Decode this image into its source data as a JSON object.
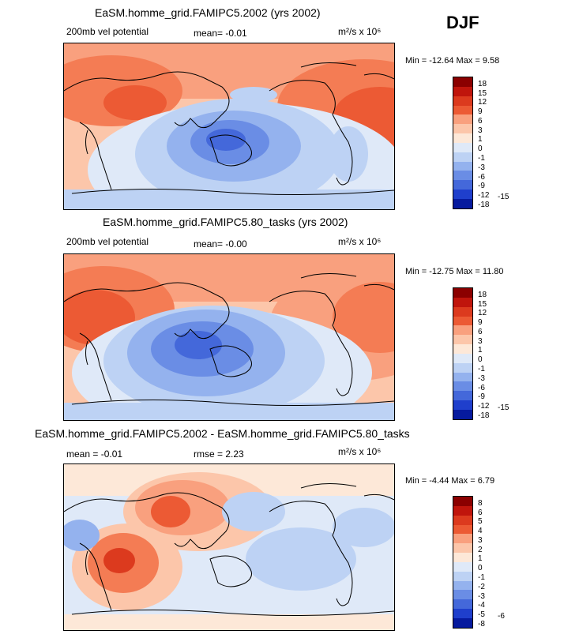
{
  "season": "DJF",
  "panels": [
    {
      "title": "EaSM.homme_grid.FAMIPC5.2002 (yrs 2002)",
      "left_label": "200mb vel potential",
      "mid_label": "mean=  -0.01",
      "units": "m²/s x 10⁶",
      "minmax": "Min = -12.64  Max =   9.58",
      "colorbar": {
        "levels": [
          "18",
          "15",
          "12",
          "9",
          "6",
          "3",
          "1",
          "0",
          "-1",
          "-3",
          "-6",
          "-9",
          "-12",
          "-15",
          "-18"
        ],
        "colors": [
          "#8b0000",
          "#c0150c",
          "#dc3a1e",
          "#ec5a34",
          "#f47c54",
          "#f9a07e",
          "#fcc6aa",
          "#fde8d8",
          "#dfe9f8",
          "#bdd2f4",
          "#94b2ee",
          "#6a8de5",
          "#4468da",
          "#1f3fcc",
          "#061a9e"
        ]
      }
    },
    {
      "title": "EaSM.homme_grid.FAMIPC5.80_tasks (yrs 2002)",
      "left_label": "200mb vel potential",
      "mid_label": "mean=  -0.00",
      "units": "m²/s x 10⁶",
      "minmax": "Min = -12.75  Max =  11.80",
      "colorbar": {
        "levels": [
          "18",
          "15",
          "12",
          "9",
          "6",
          "3",
          "1",
          "0",
          "-1",
          "-3",
          "-6",
          "-9",
          "-12",
          "-15",
          "-18"
        ],
        "colors": [
          "#8b0000",
          "#c0150c",
          "#dc3a1e",
          "#ec5a34",
          "#f47c54",
          "#f9a07e",
          "#fcc6aa",
          "#fde8d8",
          "#dfe9f8",
          "#bdd2f4",
          "#94b2ee",
          "#6a8de5",
          "#4468da",
          "#1f3fcc",
          "#061a9e"
        ]
      }
    },
    {
      "title": "EaSM.homme_grid.FAMIPC5.2002 - EaSM.homme_grid.FAMIPC5.80_tasks",
      "left_label": "mean =  -0.01",
      "mid_label": "rmse =   2.23",
      "units": "m²/s x 10⁶",
      "minmax": "Min =  -4.44  Max =   6.79",
      "colorbar": {
        "levels": [
          "8",
          "6",
          "5",
          "4",
          "3",
          "2",
          "1",
          "0",
          "-1",
          "-2",
          "-3",
          "-4",
          "-5",
          "-6",
          "-8"
        ],
        "colors": [
          "#8b0000",
          "#c0150c",
          "#dc3a1e",
          "#ec5a34",
          "#f47c54",
          "#f9a07e",
          "#fcc6aa",
          "#fde8d8",
          "#dfe9f8",
          "#bdd2f4",
          "#94b2ee",
          "#6a8de5",
          "#4468da",
          "#1f3fcc",
          "#061a9e"
        ]
      }
    }
  ],
  "chart_data": [
    {
      "type": "heatmap",
      "title": "EaSM.homme_grid.FAMIPC5.2002 (yrs 2002)",
      "variable": "200mb vel potential",
      "units": "m2/s x 10^6",
      "mean": -0.01,
      "min": -12.64,
      "max": 9.58,
      "levels": [
        -18,
        -15,
        -12,
        -9,
        -6,
        -3,
        -1,
        0,
        1,
        3,
        6,
        9,
        12,
        15,
        18
      ]
    },
    {
      "type": "heatmap",
      "title": "EaSM.homme_grid.FAMIPC5.80_tasks (yrs 2002)",
      "variable": "200mb vel potential",
      "units": "m2/s x 10^6",
      "mean": -0.0,
      "min": -12.75,
      "max": 11.8,
      "levels": [
        -18,
        -15,
        -12,
        -9,
        -6,
        -3,
        -1,
        0,
        1,
        3,
        6,
        9,
        12,
        15,
        18
      ]
    },
    {
      "type": "heatmap",
      "title": "EaSM.homme_grid.FAMIPC5.2002 - EaSM.homme_grid.FAMIPC5.80_tasks",
      "mean": -0.01,
      "rmse": 2.23,
      "units": "m2/s x 10^6",
      "min": -4.44,
      "max": 6.79,
      "levels": [
        -8,
        -6,
        -5,
        -4,
        -3,
        -2,
        -1,
        0,
        1,
        2,
        3,
        4,
        5,
        6,
        8
      ]
    }
  ]
}
